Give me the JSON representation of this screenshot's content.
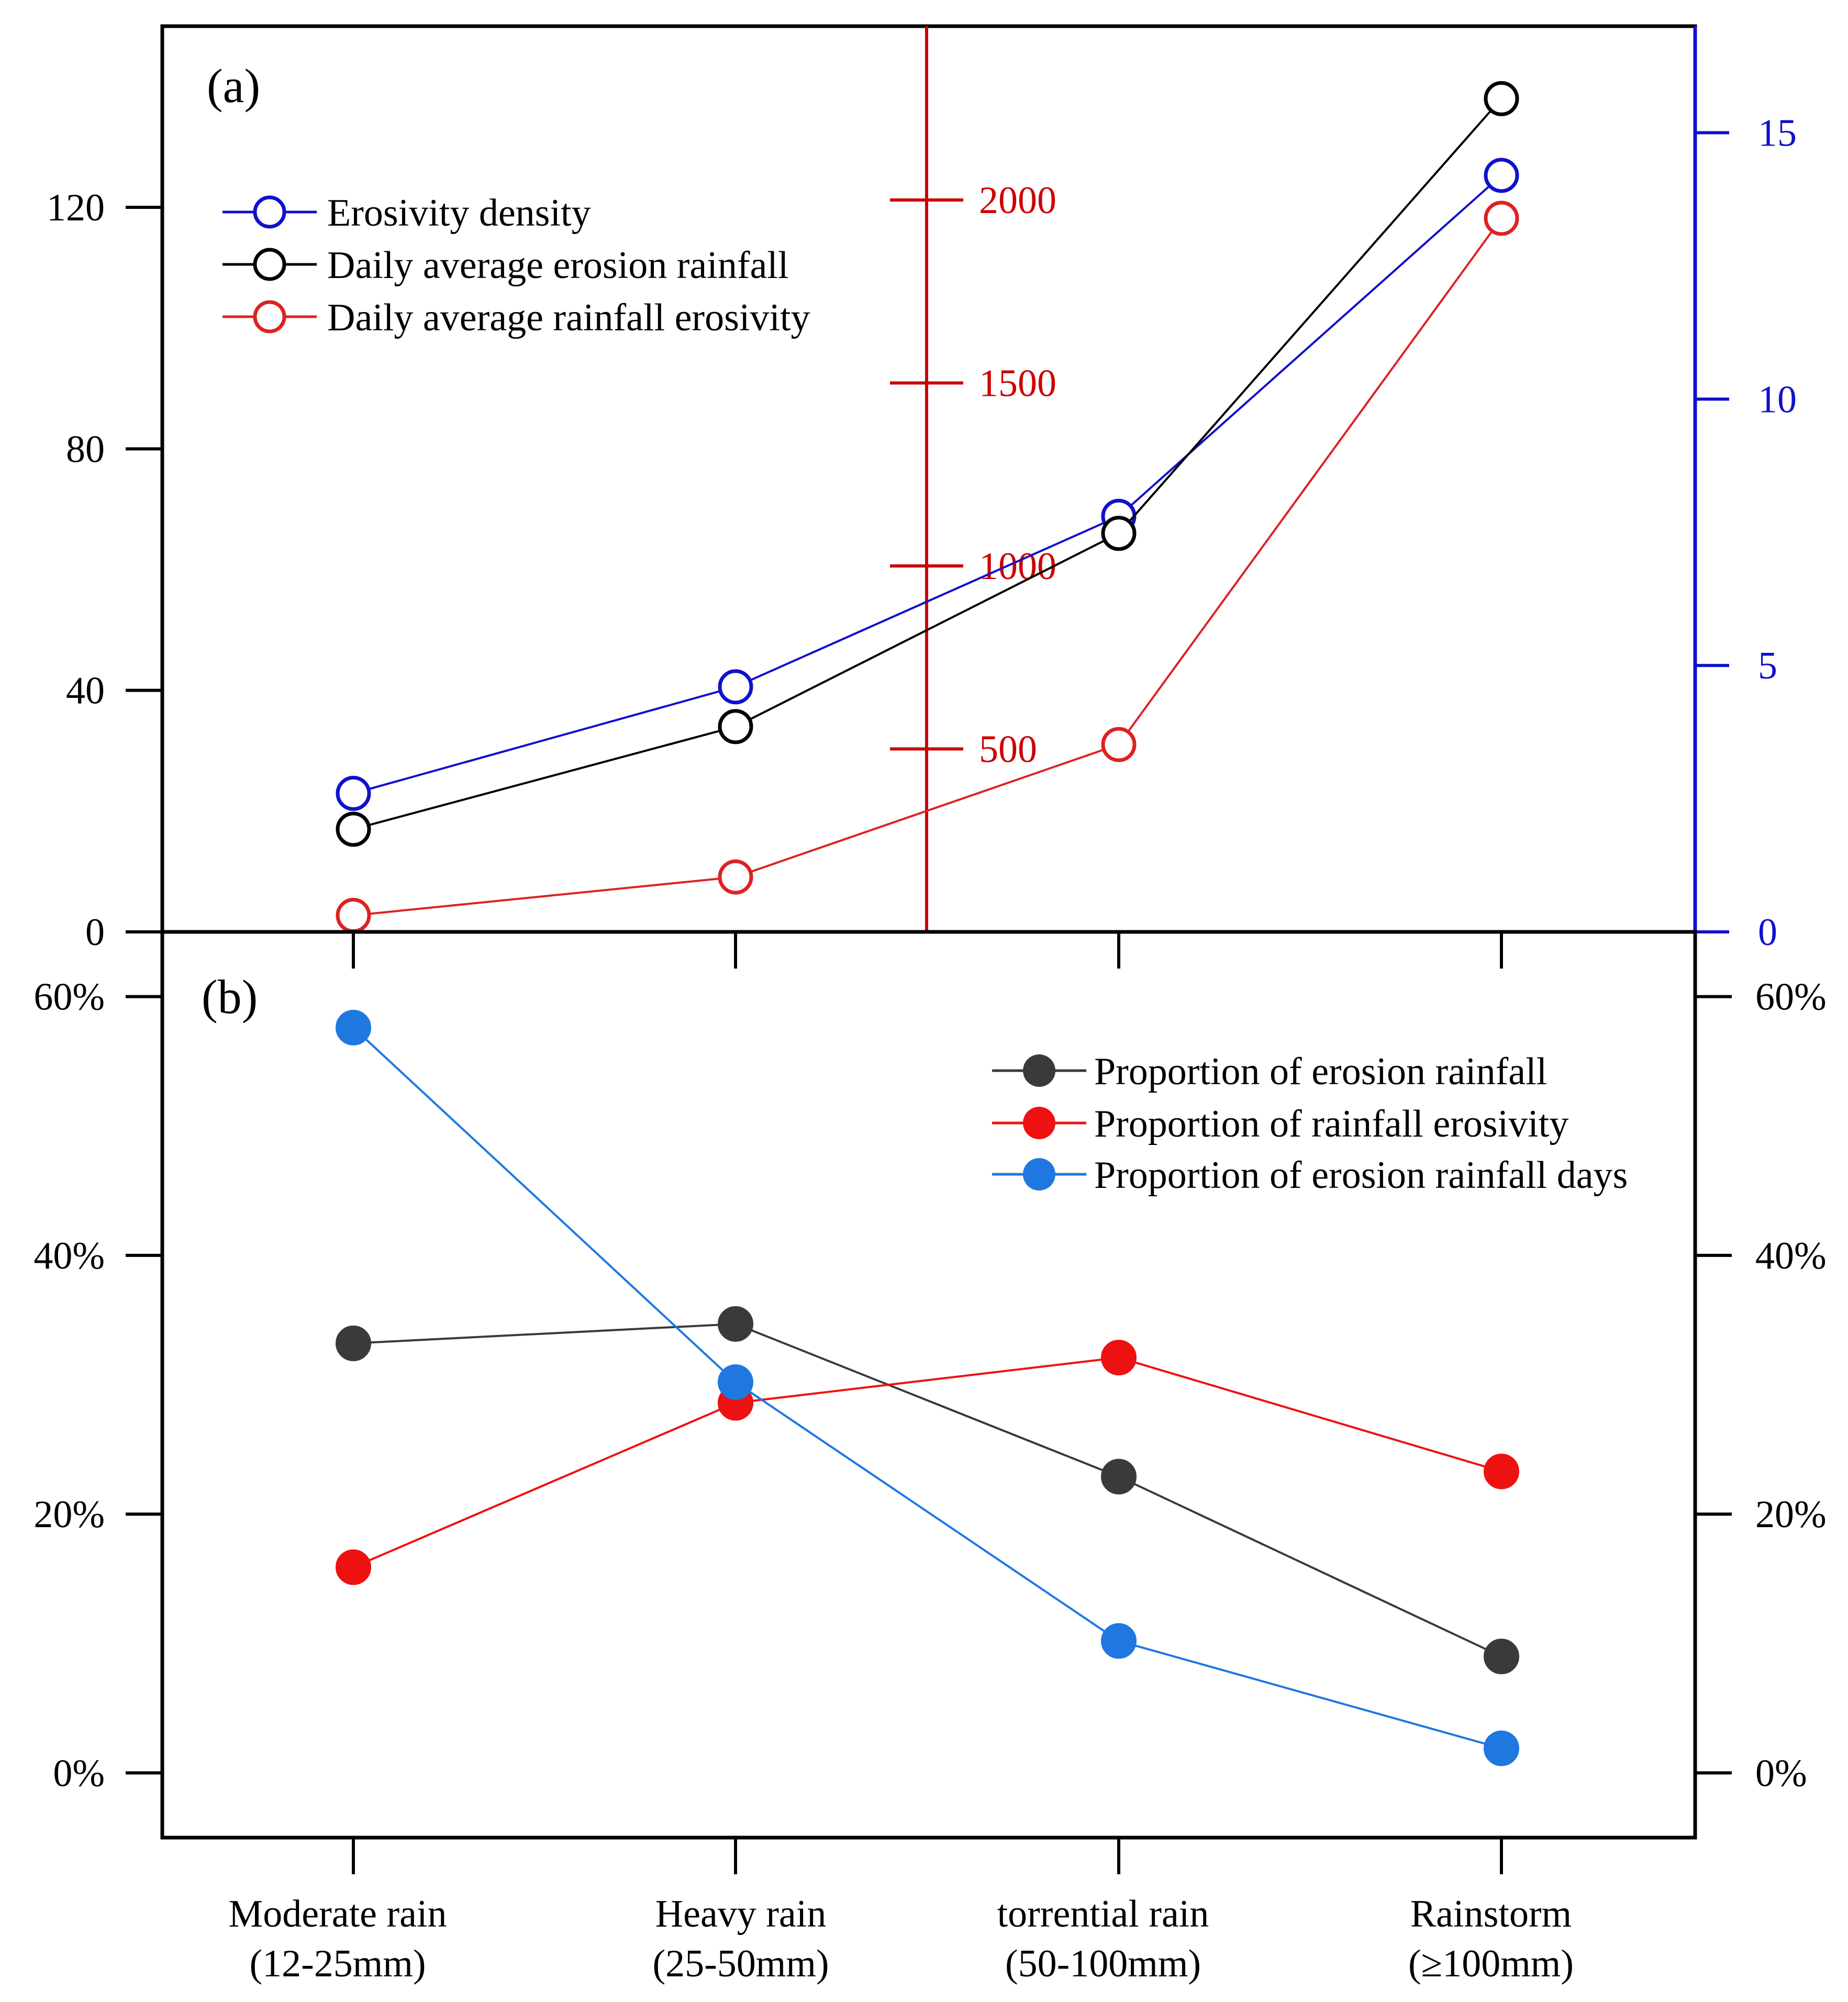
{
  "figure": {
    "categories": [
      {
        "line1": "Moderate rain",
        "line2": "(12-25mm)"
      },
      {
        "line1": "Heavy rain",
        "line2": "(25-50mm)"
      },
      {
        "line1": "torrential rain",
        "line2": "(50-100mm)"
      },
      {
        "line1": "Rainstorm",
        "line2": "(≥100mm)"
      }
    ]
  },
  "chart_data": [
    {
      "type": "line",
      "panel_label": "(a)",
      "categories": [
        "Moderate rain (12-25mm)",
        "Heavy rain (25-50mm)",
        "torrential rain (50-100mm)",
        "Rainstorm (≥100mm)"
      ],
      "axes": {
        "left": {
          "ylim": [
            0,
            150
          ],
          "ticks": [
            "0",
            "40",
            "80",
            "120"
          ],
          "tick_values": [
            0,
            40,
            80,
            120
          ],
          "color": "#000000"
        },
        "right": {
          "ylim": [
            0,
            17
          ],
          "ticks": [
            "0",
            "5",
            "10",
            "15"
          ],
          "tick_values": [
            0,
            5,
            10,
            15
          ],
          "color": "#0000cc"
        },
        "middle": {
          "ylim": [
            0,
            2475
          ],
          "ticks": [
            "500",
            "1000",
            "1500",
            "2000"
          ],
          "tick_values": [
            500,
            1000,
            1500,
            2000
          ],
          "color": "#cc0000"
        }
      },
      "series": [
        {
          "name": "Erosivity density",
          "axis": "right",
          "color": "#1010cc",
          "marker": "open-circle",
          "values": [
            2.6,
            4.6,
            7.8,
            14.2
          ]
        },
        {
          "name": "Daily average erosion rainfall",
          "axis": "left",
          "color": "#000000",
          "marker": "open-circle",
          "values": [
            17,
            34,
            66,
            138
          ]
        },
        {
          "name": "Daily average rainfall erosivity",
          "axis": "middle",
          "color": "#dd2222",
          "marker": "open-circle",
          "values": [
            45,
            150,
            512,
            1950
          ]
        }
      ],
      "legend_position": "top-left",
      "grid": false
    },
    {
      "type": "line",
      "panel_label": "(b)",
      "categories": [
        "Moderate rain (12-25mm)",
        "Heavy rain (25-50mm)",
        "torrential rain (50-100mm)",
        "Rainstorm (≥100mm)"
      ],
      "axes": {
        "left": {
          "ylim": [
            -5,
            65
          ],
          "ticks": [
            "0%",
            "20%",
            "40%",
            "60%"
          ],
          "tick_values": [
            0,
            20,
            40,
            60
          ]
        },
        "right": {
          "ylim": [
            -5,
            65
          ],
          "ticks": [
            "0%",
            "20%",
            "40%",
            "60%"
          ],
          "tick_values": [
            0,
            20,
            40,
            60
          ]
        }
      },
      "series": [
        {
          "name": "Proportion of erosion rainfall",
          "color": "#3a3a3a",
          "marker": "filled-circle",
          "values": [
            33.2,
            34.7,
            22.9,
            9.0
          ]
        },
        {
          "name": "Proportion of rainfall erosivity",
          "color": "#ee1111",
          "marker": "filled-circle",
          "values": [
            15.9,
            28.6,
            32.1,
            23.3
          ]
        },
        {
          "name": "Proportion of erosion rainfall days",
          "color": "#1e78e0",
          "marker": "filled-circle",
          "values": [
            57.6,
            30.2,
            10.2,
            1.9
          ]
        }
      ],
      "legend_position": "top-right",
      "grid": false
    }
  ]
}
